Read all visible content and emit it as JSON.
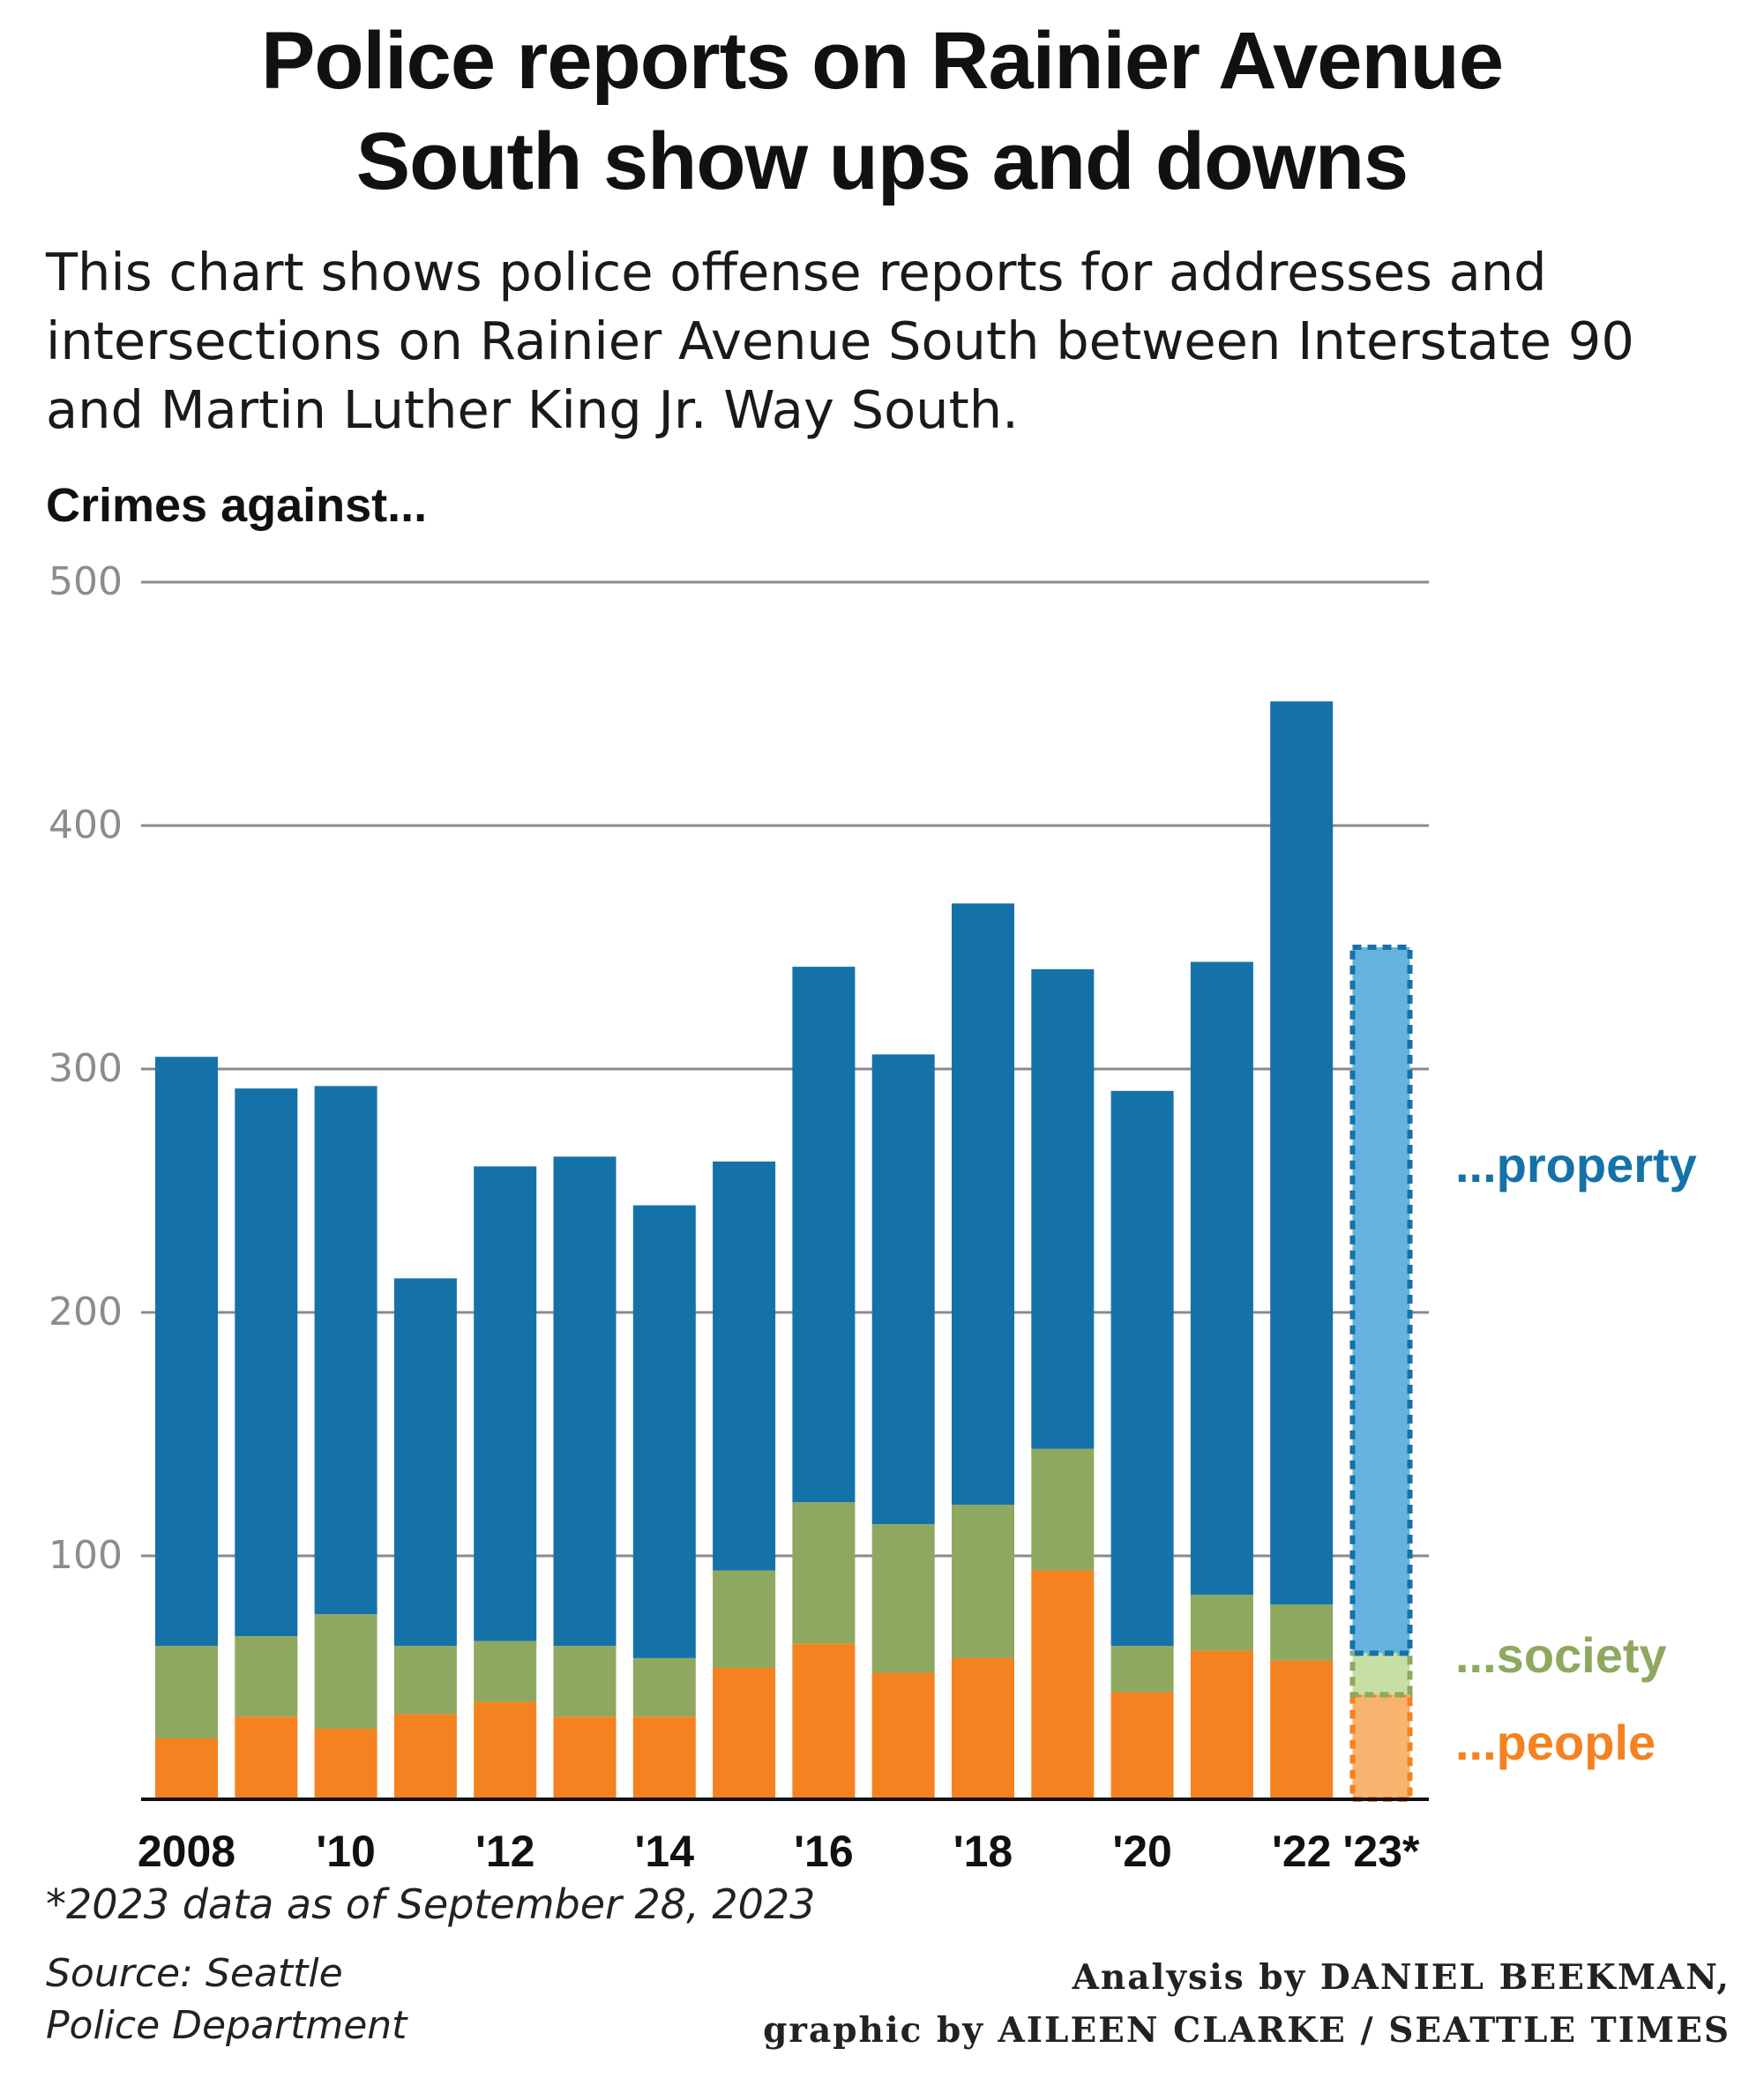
{
  "title_line1": "Police reports on Rainier Avenue",
  "title_line2": "South show ups and downs",
  "subtitle_line1": "This chart shows police offense reports for addresses and",
  "subtitle_line2": "intersections on Rainier Avenue South between Interstate 90",
  "subtitle_line3": "and Martin Luther King Jr. Way South.",
  "footnote": "*2023 data as of September 28, 2023",
  "source_line1": "Source: Seattle",
  "source_line2": "Police Department",
  "credit_line1": "Analysis by DANIEL BEEKMAN,",
  "credit_line2": "graphic by AILEEN CLARKE / SEATTLE TIMES",
  "colors": {
    "property": "#1572a9",
    "society": "#8fa85f",
    "people": "#f58220",
    "property_partial": "#65b4df",
    "society_partial": "#c6e0a4",
    "people_partial": "#f8b36f",
    "grid": "#8a8a8a",
    "tick_label": "#8c8c8c"
  },
  "chart_data": {
    "type": "bar",
    "stacked": true,
    "ylabel": "Crimes against...",
    "ylim": [
      0,
      500
    ],
    "yticks": [
      100,
      200,
      300,
      400,
      500
    ],
    "grid": true,
    "legend_placement": "right",
    "categories": [
      "2008",
      "2009",
      "2010",
      "2011",
      "2012",
      "2013",
      "2014",
      "2015",
      "2016",
      "2017",
      "2018",
      "2019",
      "2020",
      "2021",
      "2022",
      "2023"
    ],
    "tick_labels": [
      "2008",
      "",
      "'10",
      "",
      "'12",
      "",
      "'14",
      "",
      "'16",
      "",
      "'18",
      "",
      "'20",
      "",
      "'22",
      "'23*"
    ],
    "partial_category": "2023",
    "series": [
      {
        "name": "...people",
        "values": [
          25,
          34,
          29,
          35,
          40,
          34,
          34,
          54,
          64,
          52,
          58,
          94,
          44,
          61,
          57,
          43
        ]
      },
      {
        "name": "...society",
        "values": [
          38,
          33,
          47,
          28,
          25,
          29,
          24,
          40,
          58,
          61,
          63,
          50,
          19,
          23,
          23,
          17
        ]
      },
      {
        "name": "...property",
        "values": [
          242,
          225,
          217,
          151,
          195,
          201,
          186,
          168,
          220,
          193,
          247,
          197,
          228,
          260,
          371,
          290
        ]
      }
    ]
  }
}
